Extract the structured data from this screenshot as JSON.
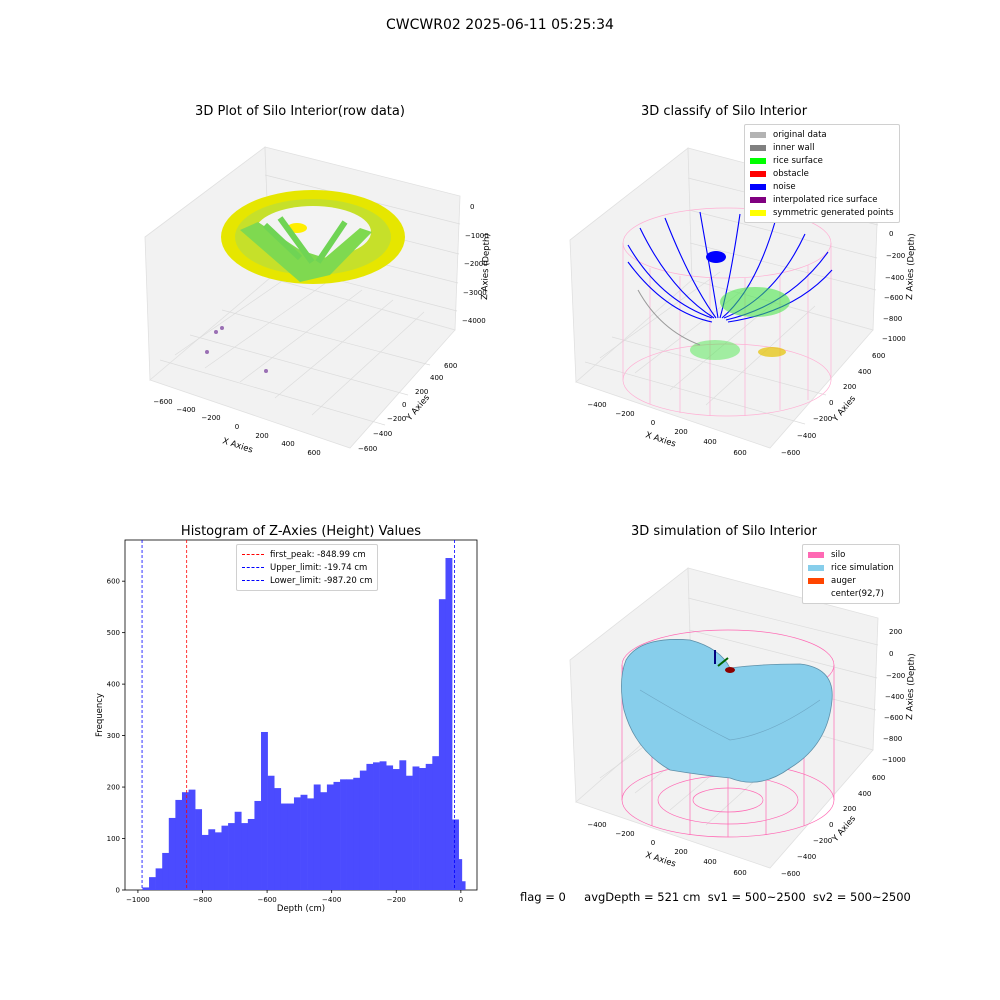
{
  "suptitle": "CWCWR02 2025-06-11 05:25:34",
  "panels": {
    "raw": {
      "title": "3D Plot of Silo Interior(row data)",
      "xlabel": "X Axies",
      "ylabel": "Y Axies",
      "zlabel": "Z Axies (Depth)",
      "xticks": [
        "−600",
        "−400",
        "−200",
        "0",
        "200",
        "400",
        "600"
      ],
      "yticks": [
        "600",
        "400",
        "200",
        "0",
        "−200",
        "−400",
        "−600"
      ],
      "zticks": [
        "0",
        "−1000",
        "−2000",
        "−3000",
        "−4000"
      ]
    },
    "classify": {
      "title": "3D classify of Silo Interior",
      "xlabel": "X Axies",
      "ylabel": "Y Axies",
      "zlabel": "Z Axies (Depth)",
      "xticks": [
        "−400",
        "−200",
        "0",
        "200",
        "400",
        "600"
      ],
      "yticks": [
        "600",
        "400",
        "200",
        "0",
        "−200",
        "−400",
        "−600"
      ],
      "zticks": [
        "0",
        "−200",
        "−400",
        "−600",
        "−800",
        "−1000"
      ],
      "legend": [
        {
          "label": "original data",
          "color": "#b3b3b3"
        },
        {
          "label": "inner wall",
          "color": "#808080"
        },
        {
          "label": "rice surface",
          "color": "#00ff00"
        },
        {
          "label": "obstacle",
          "color": "#ff0000"
        },
        {
          "label": "noise",
          "color": "#0000ff"
        },
        {
          "label": "interpolated rice surface",
          "color": "#800080"
        },
        {
          "label": "symmetric generated points",
          "color": "#ffff00"
        }
      ]
    },
    "simulation": {
      "title": "3D simulation of Silo Interior",
      "xlabel": "X Axies",
      "ylabel": "Y Axies",
      "zlabel": "Z Axies (Depth)",
      "xticks": [
        "−400",
        "−200",
        "0",
        "200",
        "400",
        "600"
      ],
      "yticks": [
        "600",
        "400",
        "200",
        "0",
        "−200",
        "−400",
        "−600"
      ],
      "zticks": [
        "200",
        "0",
        "−200",
        "−400",
        "−600",
        "−800",
        "−1000"
      ],
      "legend": [
        {
          "label": "silo",
          "color": "#ff69b4"
        },
        {
          "label": "rice simulation",
          "color": "#87ceeb"
        },
        {
          "label": "auger",
          "color": "#ff4500"
        },
        {
          "label": "center(92,7)",
          "color": ""
        }
      ]
    }
  },
  "footer": {
    "flag": "flag = 0",
    "avg": "avgDepth = 521 cm",
    "sv1": "sv1 = 500~2500",
    "sv2": "sv2 = 500~2500"
  },
  "chart_data": {
    "type": "bar",
    "title": "Histogram of Z-Axies (Height) Values",
    "xlabel": "Depth (cm)",
    "ylabel": "Frequency",
    "xlim": [
      -1040,
      50
    ],
    "ylim": [
      0,
      680
    ],
    "xticks": [
      {
        "v": -1000,
        "t": "−1000"
      },
      {
        "v": -800,
        "t": "−800"
      },
      {
        "v": -600,
        "t": "−600"
      },
      {
        "v": -400,
        "t": "−400"
      },
      {
        "v": -200,
        "t": "−200"
      },
      {
        "v": 0,
        "t": "0"
      }
    ],
    "yticks": [
      {
        "v": 0,
        "t": "0"
      },
      {
        "v": 100,
        "t": "100"
      },
      {
        "v": 200,
        "t": "200"
      },
      {
        "v": 300,
        "t": "300"
      },
      {
        "v": 400,
        "t": "400"
      },
      {
        "v": 500,
        "t": "500"
      },
      {
        "v": 600,
        "t": "600"
      }
    ],
    "bar_color": "#4b4bff",
    "bin_start": -986,
    "bin_width": 20.4,
    "values": [
      5,
      25,
      42,
      72,
      140,
      175,
      190,
      195,
      157,
      107,
      118,
      112,
      125,
      130,
      152,
      130,
      138,
      173,
      307,
      222,
      198,
      168,
      168,
      180,
      185,
      178,
      205,
      190,
      205,
      210,
      215,
      215,
      218,
      232,
      245,
      248,
      250,
      242,
      235,
      252,
      222,
      240,
      237,
      245,
      260,
      565,
      645,
      137,
      17
    ],
    "extra_bar": {
      "x": -8,
      "width": 12,
      "value": 60
    },
    "vlines": [
      {
        "x": -848.99,
        "color": "#ff0000",
        "label": "first_peak: -848.99 cm"
      },
      {
        "x": -19.74,
        "color": "#0000ff",
        "label": "Upper_limit: -19.74 cm"
      },
      {
        "x": -987.2,
        "color": "#0000ff",
        "label": "Lower_limit: -987.20 cm"
      }
    ]
  }
}
